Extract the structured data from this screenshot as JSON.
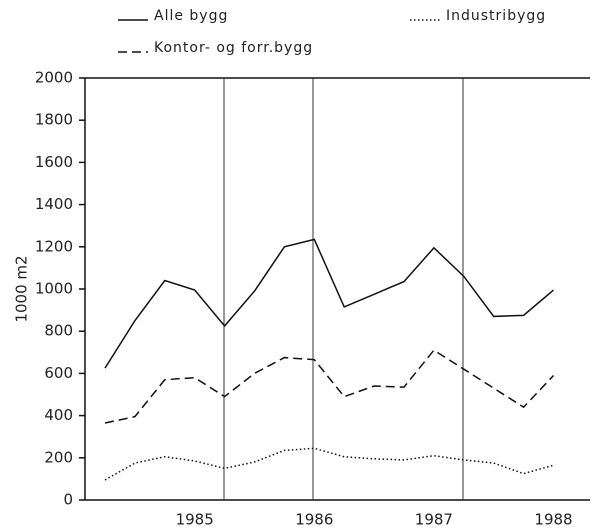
{
  "chart_data": {
    "type": "line",
    "ylabel": "1000 m2",
    "categories": [
      null,
      null,
      null,
      "1985",
      null,
      null,
      null,
      "1986",
      null,
      null,
      null,
      "1987",
      null,
      null,
      null,
      "1988"
    ],
    "series": [
      {
        "name": "Alle bygg",
        "color": "#111111",
        "dash": "solid",
        "values": [
          625,
          850,
          1040,
          995,
          825,
          990,
          1200,
          1235,
          915,
          975,
          1035,
          1195,
          1060,
          870,
          875,
          995
        ]
      },
      {
        "name": "Kontor- og forr.bygg",
        "color": "#111111",
        "dash": "dashed",
        "values": [
          365,
          395,
          570,
          580,
          490,
          600,
          675,
          665,
          490,
          540,
          535,
          710,
          620,
          530,
          440,
          590
        ]
      },
      {
        "name": "Industribygg",
        "color": "#111111",
        "dash": "dotted",
        "values": [
          95,
          175,
          205,
          185,
          150,
          180,
          235,
          245,
          205,
          195,
          190,
          210,
          190,
          175,
          125,
          165
        ]
      }
    ],
    "ylim": [
      0,
      2000
    ],
    "yticks": [
      0,
      200,
      400,
      600,
      800,
      1000,
      1200,
      1400,
      1600,
      1800,
      2000
    ]
  }
}
